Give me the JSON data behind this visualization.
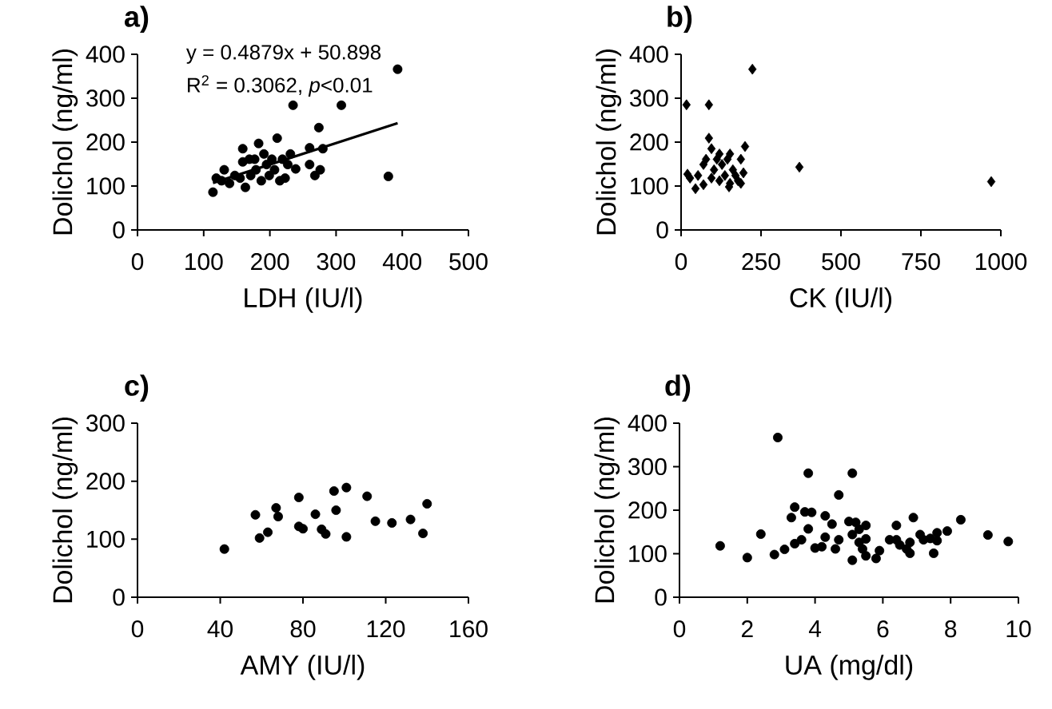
{
  "chart_data": [
    {
      "type": "scatter",
      "title": "a)",
      "xlabel": "LDH (IU/l)",
      "ylabel": "Dolichol (ng/ml)",
      "xlim": [
        0,
        500
      ],
      "ylim": [
        0,
        400
      ],
      "xticks": [
        0,
        100,
        200,
        300,
        400,
        500
      ],
      "yticks": [
        0,
        100,
        200,
        300,
        400
      ],
      "marker": "circle",
      "annotations": [
        "y = 0.4879x + 50.898",
        "R$^{2}$ = 0.3062,  *p*<0.01"
      ],
      "series": [
        {
          "color": "#000000",
          "x": [
            114,
            119,
            127,
            131,
            139,
            147,
            155,
            159,
            163,
            169,
            171,
            179,
            183,
            187,
            191,
            195,
            199,
            203,
            207,
            211,
            215,
            219,
            223,
            231,
            235,
            239,
            260,
            260,
            268,
            274,
            276,
            308,
            379,
            393,
            280,
            227,
            177,
            159
          ],
          "values": [
            86,
            118,
            112,
            137,
            106,
            124,
            118,
            185,
            97,
            161,
            124,
            137,
            197,
            112,
            173,
            149,
            124,
            161,
            137,
            209,
            112,
            161,
            118,
            173,
            284,
            139,
            187,
            149,
            124,
            233,
            137,
            284,
            122,
            366,
            185,
            149,
            161,
            155
          ]
        },
        {
          "type": "line",
          "color": "#000000",
          "marker": "none",
          "x": [
            114,
            393
          ],
          "values": [
            107,
            243
          ]
        }
      ]
    },
    {
      "type": "scatter",
      "title": "b)",
      "xlabel": "CK (IU/l)",
      "ylabel": "Dolichol (ng/ml)",
      "xlim": [
        0,
        1000
      ],
      "ylim": [
        0,
        400
      ],
      "xticks": [
        0,
        250,
        500,
        750,
        1000
      ],
      "yticks": [
        0,
        100,
        200,
        300,
        400
      ],
      "marker": "diamond",
      "series": [
        {
          "color": "#000000",
          "x": [
            17,
            87,
            223,
            370,
            970,
            20,
            28,
            45,
            53,
            70,
            78,
            87,
            95,
            103,
            112,
            120,
            128,
            137,
            145,
            153,
            162,
            150,
            170,
            178,
            187,
            195,
            200,
            70,
            95,
            120,
            153,
            187
          ],
          "values": [
            285,
            285,
            366,
            143,
            110,
            127,
            118,
            94,
            124,
            149,
            161,
            209,
            185,
            137,
            161,
            112,
            149,
            124,
            161,
            173,
            137,
            98,
            124,
            112,
            161,
            130,
            190,
            103,
            118,
            173,
            106,
            106
          ]
        }
      ]
    },
    {
      "type": "scatter",
      "title": "c)",
      "xlabel": "AMY (IU/l)",
      "ylabel": "Dolichol (ng/ml)",
      "xlim": [
        0,
        160
      ],
      "ylim": [
        0,
        300
      ],
      "xticks": [
        0,
        40,
        80,
        120,
        160
      ],
      "yticks": [
        0,
        100,
        200,
        300
      ],
      "marker": "circle",
      "series": [
        {
          "color": "#000000",
          "x": [
            42,
            57,
            59,
            63,
            67,
            68,
            78,
            78,
            80,
            86,
            89,
            91,
            95,
            96,
            101,
            101,
            111,
            115,
            123,
            132,
            138,
            140
          ],
          "values": [
            83,
            142,
            102,
            112,
            154,
            139,
            172,
            122,
            118,
            143,
            117,
            109,
            183,
            150,
            189,
            104,
            174,
            131,
            128,
            134,
            110,
            161
          ]
        }
      ]
    },
    {
      "type": "scatter",
      "title": "d)",
      "xlabel": "UA (mg/dl)",
      "ylabel": "Dolichol (ng/ml)",
      "xlim": [
        0,
        10
      ],
      "ylim": [
        0,
        400
      ],
      "xticks": [
        0,
        2,
        4,
        6,
        8,
        10
      ],
      "yticks": [
        0,
        100,
        200,
        300,
        400
      ],
      "marker": "circle",
      "series": [
        {
          "color": "#000000",
          "x": [
            1.2,
            2.0,
            2.4,
            2.8,
            2.9,
            3.1,
            3.3,
            3.4,
            3.4,
            3.6,
            3.7,
            3.8,
            3.8,
            3.9,
            4.0,
            4.2,
            4.3,
            4.3,
            4.5,
            4.6,
            4.7,
            4.7,
            5.0,
            5.1,
            5.1,
            5.1,
            5.2,
            5.3,
            5.3,
            5.4,
            5.5,
            5.5,
            5.5,
            5.8,
            5.9,
            6.2,
            6.4,
            6.4,
            6.5,
            6.7,
            6.8,
            6.8,
            6.9,
            7.1,
            7.2,
            7.4,
            7.5,
            7.6,
            7.6,
            7.9,
            8.3,
            9.1,
            9.7
          ],
          "values": [
            118,
            91,
            145,
            98,
            367,
            110,
            183,
            207,
            123,
            132,
            196,
            157,
            285,
            195,
            113,
            116,
            187,
            138,
            168,
            111,
            235,
            132,
            174,
            285,
            85,
            144,
            172,
            126,
            156,
            111,
            165,
            134,
            95,
            89,
            107,
            132,
            165,
            132,
            120,
            111,
            101,
            126,
            183,
            144,
            132,
            135,
            101,
            148,
            130,
            152,
            178,
            143,
            128
          ]
        }
      ]
    }
  ]
}
